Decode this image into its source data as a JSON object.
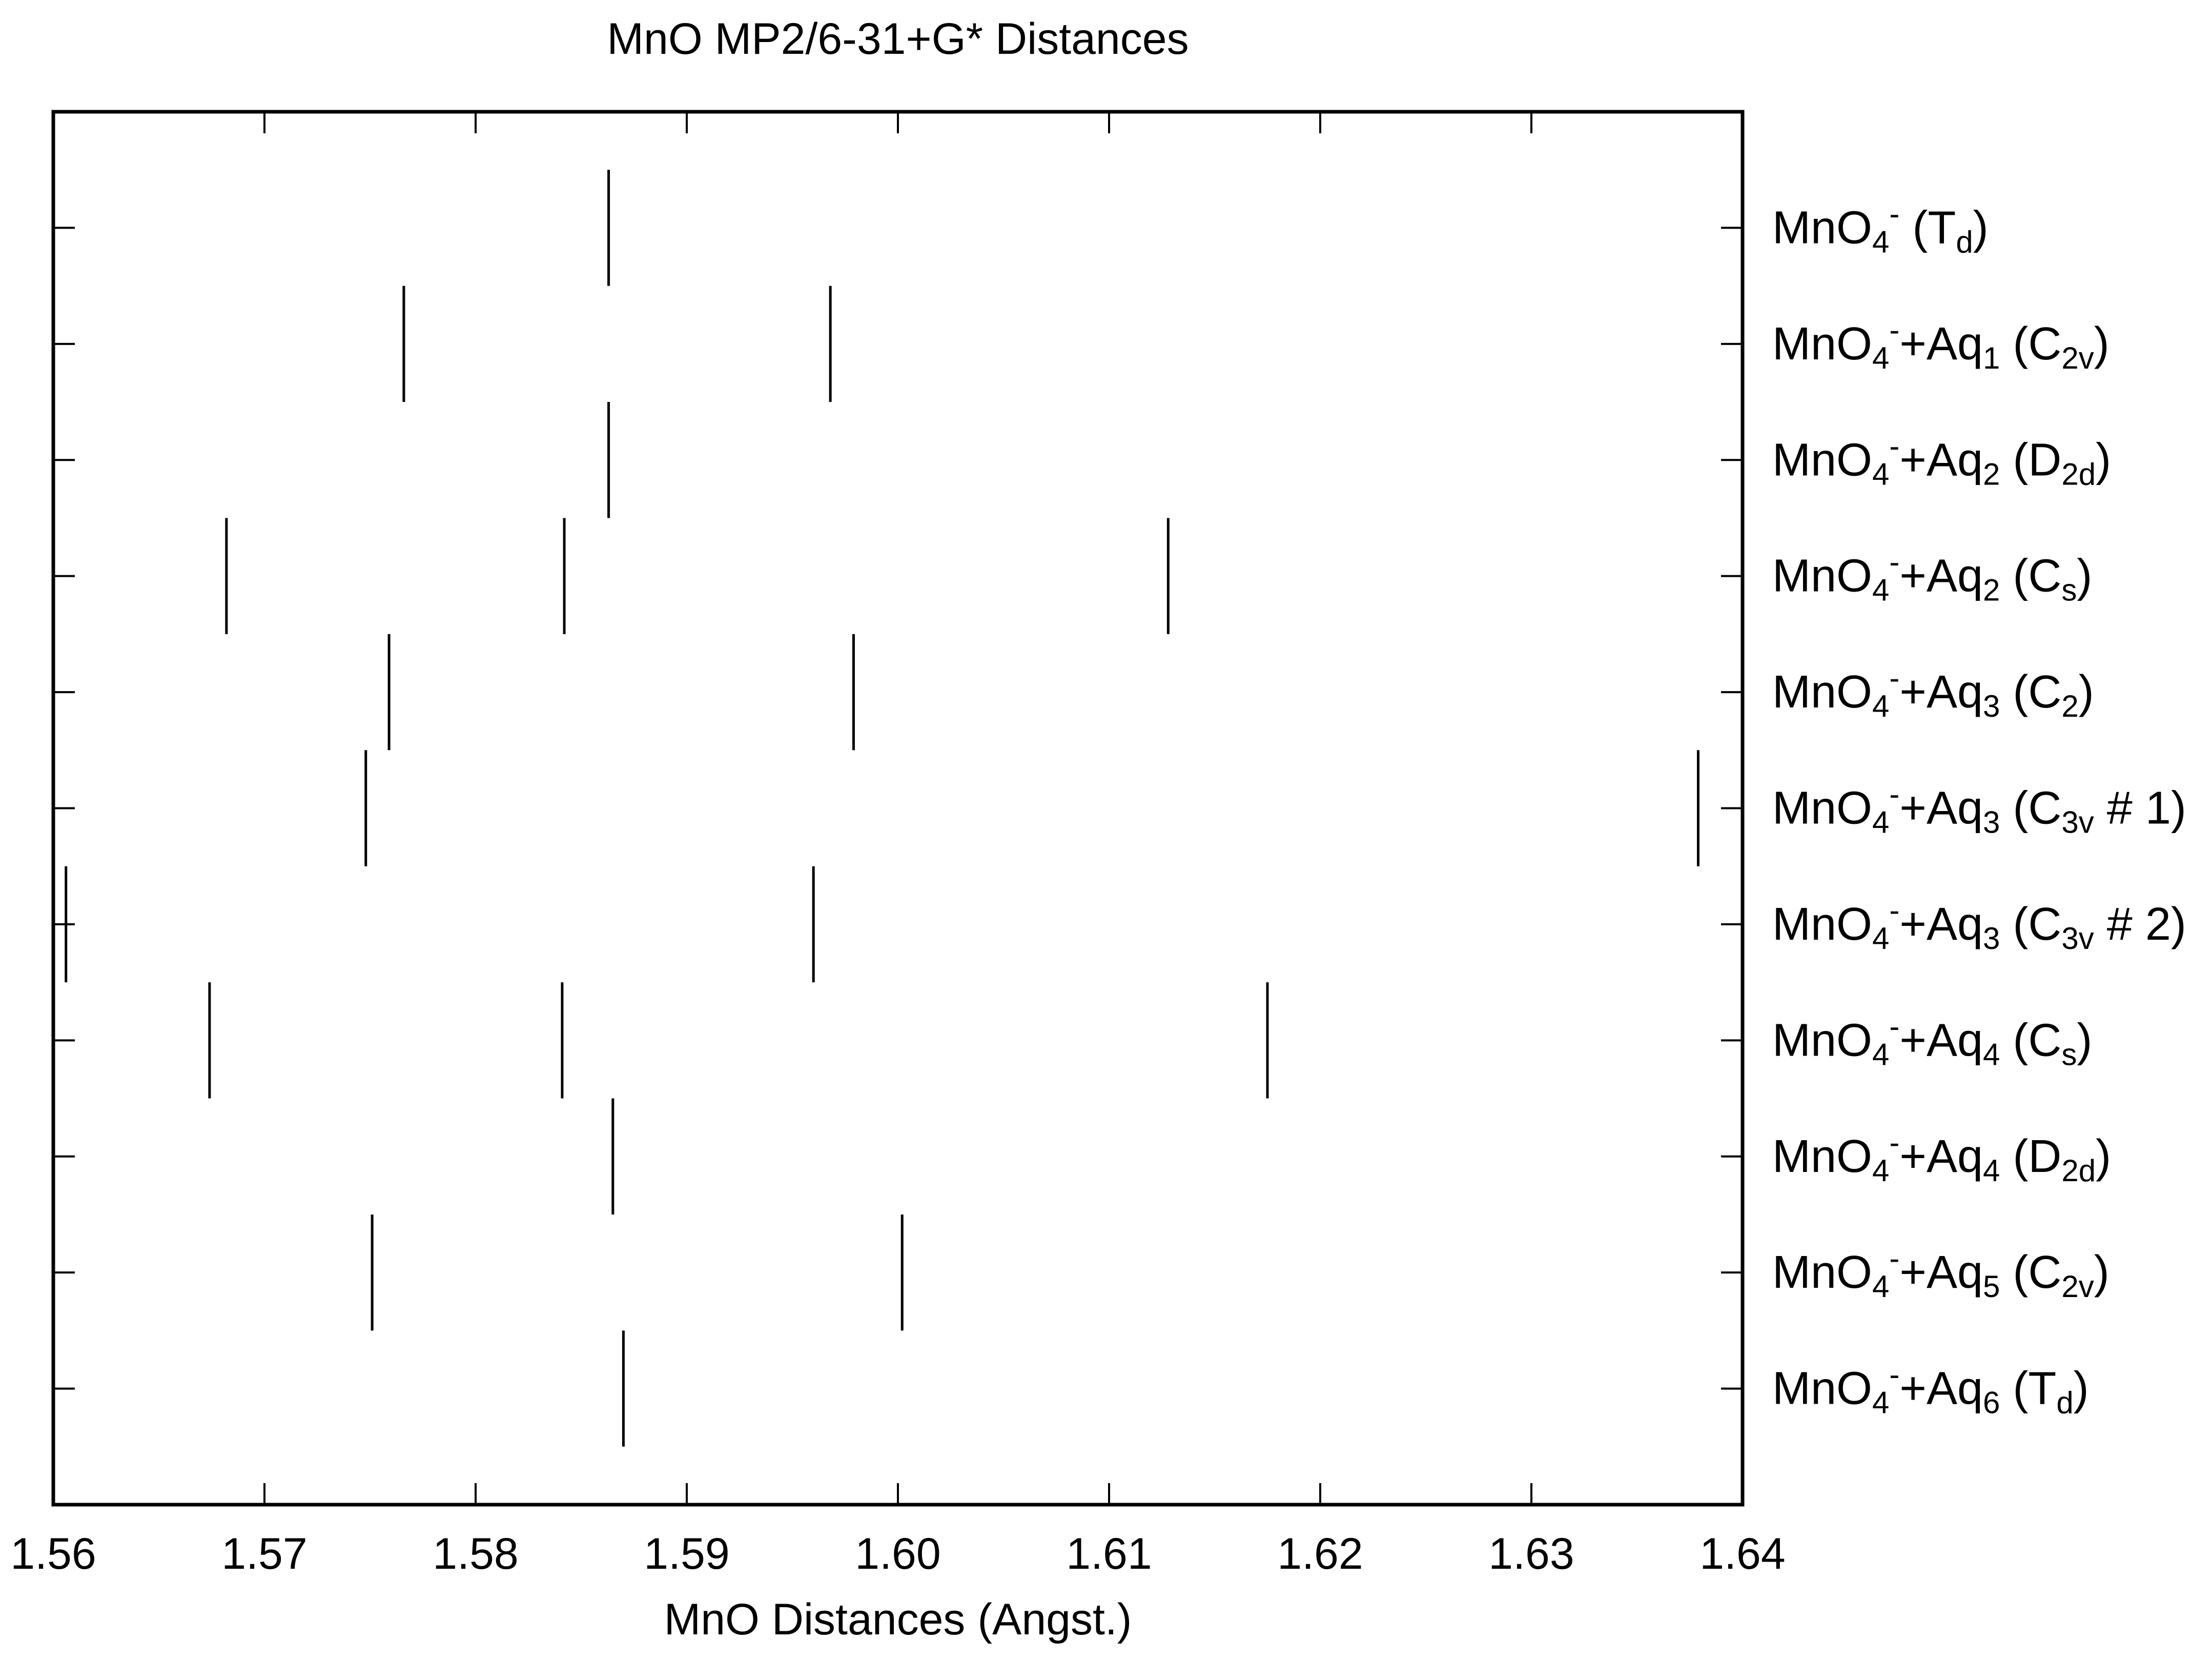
{
  "chart_data": {
    "type": "scatter",
    "marker": "vertical-line",
    "title": "MnO MP2/6-31+G* Distances",
    "xlabel": "MnO Distances (Angst.)",
    "ylabel": "",
    "xlim": [
      1.56,
      1.64
    ],
    "xticks": [
      1.56,
      1.57,
      1.58,
      1.59,
      1.6,
      1.61,
      1.62,
      1.63,
      1.64
    ],
    "xtick_labels": [
      "1.56",
      "1.57",
      "1.58",
      "1.59",
      "1.60",
      "1.61",
      "1.62",
      "1.63",
      "1.64"
    ],
    "grid": false,
    "legend": "none",
    "category_axis": "right",
    "categories": [
      "MnO4- (Td)",
      "MnO4-+Aq1 (C2v)",
      "MnO4-+Aq2 (D2d)",
      "MnO4-+Aq2 (Cs)",
      "MnO4-+Aq3 (C2)",
      "MnO4-+Aq3 (C3v # 1)",
      "MnO4-+Aq3 (C3v # 2)",
      "MnO4-+Aq4 (Cs)",
      "MnO4-+Aq4 (D2d)",
      "MnO4-+Aq5 (C2v)",
      "MnO4-+Aq6 (Td)"
    ],
    "category_labels": [
      [
        {
          "t": "MnO"
        },
        {
          "t": "4",
          "s": "sub"
        },
        {
          "t": "-",
          "s": "sup"
        },
        {
          "t": " (T"
        },
        {
          "t": "d",
          "s": "sub"
        },
        {
          "t": ")"
        }
      ],
      [
        {
          "t": "MnO"
        },
        {
          "t": "4",
          "s": "sub"
        },
        {
          "t": "-",
          "s": "sup"
        },
        {
          "t": "+Aq"
        },
        {
          "t": "1",
          "s": "sub"
        },
        {
          "t": " (C"
        },
        {
          "t": "2v",
          "s": "sub"
        },
        {
          "t": ")"
        }
      ],
      [
        {
          "t": "MnO"
        },
        {
          "t": "4",
          "s": "sub"
        },
        {
          "t": "-",
          "s": "sup"
        },
        {
          "t": "+Aq"
        },
        {
          "t": "2",
          "s": "sub"
        },
        {
          "t": " (D"
        },
        {
          "t": "2d",
          "s": "sub"
        },
        {
          "t": ")"
        }
      ],
      [
        {
          "t": "MnO"
        },
        {
          "t": "4",
          "s": "sub"
        },
        {
          "t": "-",
          "s": "sup"
        },
        {
          "t": "+Aq"
        },
        {
          "t": "2",
          "s": "sub"
        },
        {
          "t": " (C"
        },
        {
          "t": "s",
          "s": "sub"
        },
        {
          "t": ")"
        }
      ],
      [
        {
          "t": "MnO"
        },
        {
          "t": "4",
          "s": "sub"
        },
        {
          "t": "-",
          "s": "sup"
        },
        {
          "t": "+Aq"
        },
        {
          "t": "3",
          "s": "sub"
        },
        {
          "t": " (C"
        },
        {
          "t": "2",
          "s": "sub"
        },
        {
          "t": ")"
        }
      ],
      [
        {
          "t": "MnO"
        },
        {
          "t": "4",
          "s": "sub"
        },
        {
          "t": "-",
          "s": "sup"
        },
        {
          "t": "+Aq"
        },
        {
          "t": "3",
          "s": "sub"
        },
        {
          "t": " (C"
        },
        {
          "t": "3v",
          "s": "sub"
        },
        {
          "t": " # 1)"
        }
      ],
      [
        {
          "t": "MnO"
        },
        {
          "t": "4",
          "s": "sub"
        },
        {
          "t": "-",
          "s": "sup"
        },
        {
          "t": "+Aq"
        },
        {
          "t": "3",
          "s": "sub"
        },
        {
          "t": " (C"
        },
        {
          "t": "3v",
          "s": "sub"
        },
        {
          "t": " # 2)"
        }
      ],
      [
        {
          "t": "MnO"
        },
        {
          "t": "4",
          "s": "sub"
        },
        {
          "t": "-",
          "s": "sup"
        },
        {
          "t": "+Aq"
        },
        {
          "t": "4",
          "s": "sub"
        },
        {
          "t": " (C"
        },
        {
          "t": "s",
          "s": "sub"
        },
        {
          "t": ")"
        }
      ],
      [
        {
          "t": "MnO"
        },
        {
          "t": "4",
          "s": "sub"
        },
        {
          "t": "-",
          "s": "sup"
        },
        {
          "t": "+Aq"
        },
        {
          "t": "4",
          "s": "sub"
        },
        {
          "t": " (D"
        },
        {
          "t": "2d",
          "s": "sub"
        },
        {
          "t": ")"
        }
      ],
      [
        {
          "t": "MnO"
        },
        {
          "t": "4",
          "s": "sub"
        },
        {
          "t": "-",
          "s": "sup"
        },
        {
          "t": "+Aq"
        },
        {
          "t": "5",
          "s": "sub"
        },
        {
          "t": " (C"
        },
        {
          "t": "2v",
          "s": "sub"
        },
        {
          "t": ")"
        }
      ],
      [
        {
          "t": "MnO"
        },
        {
          "t": "4",
          "s": "sub"
        },
        {
          "t": "-",
          "s": "sup"
        },
        {
          "t": "+Aq"
        },
        {
          "t": "6",
          "s": "sub"
        },
        {
          "t": " (T"
        },
        {
          "t": "d",
          "s": "sub"
        },
        {
          "t": ")"
        }
      ]
    ],
    "series": [
      {
        "category": "MnO4- (Td)",
        "values": [
          1.5863
        ]
      },
      {
        "category": "MnO4-+Aq1 (C2v)",
        "values": [
          1.5766,
          1.5968
        ]
      },
      {
        "category": "MnO4-+Aq2 (D2d)",
        "values": [
          1.5863
        ]
      },
      {
        "category": "MnO4-+Aq2 (Cs)",
        "values": [
          1.5682,
          1.5842,
          1.6128
        ]
      },
      {
        "category": "MnO4-+Aq3 (C2)",
        "values": [
          1.5759,
          1.5979
        ]
      },
      {
        "category": "MnO4-+Aq3 (C3v # 1)",
        "values": [
          1.5748,
          1.6379
        ]
      },
      {
        "category": "MnO4-+Aq3 (C3v # 2)",
        "values": [
          1.5606,
          1.596
        ]
      },
      {
        "category": "MnO4-+Aq4 (Cs)",
        "values": [
          1.5674,
          1.5841,
          1.6175
        ]
      },
      {
        "category": "MnO4-+Aq4 (D2d)",
        "values": [
          1.5865
        ]
      },
      {
        "category": "MnO4-+Aq5 (C2v)",
        "values": [
          1.5751,
          1.6002
        ]
      },
      {
        "category": "MnO4-+Aq6 (Td)",
        "values": [
          1.587
        ]
      }
    ],
    "colors": {
      "marks": "#000000",
      "axes": "#000000",
      "background": "#ffffff"
    }
  }
}
